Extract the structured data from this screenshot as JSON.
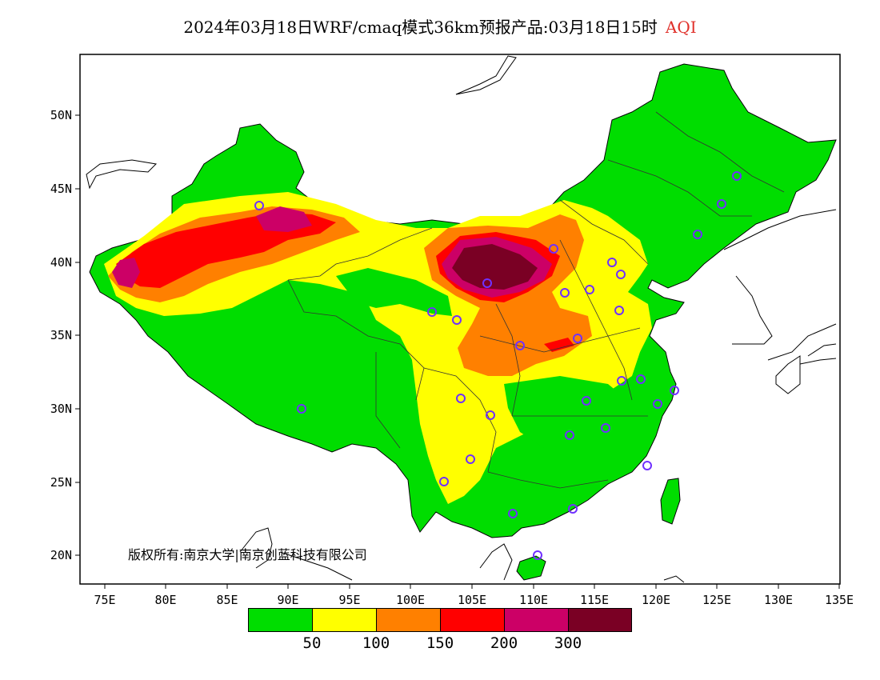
{
  "header": {
    "title": "2024年03月18日WRF/cmaq模式36km预报产品:03月18日15时",
    "highlight": "AQI"
  },
  "map": {
    "lon_ticks": [
      "75E",
      "80E",
      "85E",
      "90E",
      "95E",
      "100E",
      "105E",
      "110E",
      "115E",
      "120E",
      "125E",
      "130E",
      "135E"
    ],
    "lat_ticks": [
      "50N",
      "45N",
      "40N",
      "35N",
      "30N",
      "25N",
      "20N"
    ],
    "copyright": "版权所有:南京大学|南京创蓝科技有限公司"
  },
  "legend": {
    "colors": [
      "#00dd00",
      "#ffff00",
      "#ff8000",
      "#ff0000",
      "#cc0066",
      "#7a0024"
    ],
    "labels": [
      "50",
      "100",
      "150",
      "200",
      "300"
    ]
  }
}
